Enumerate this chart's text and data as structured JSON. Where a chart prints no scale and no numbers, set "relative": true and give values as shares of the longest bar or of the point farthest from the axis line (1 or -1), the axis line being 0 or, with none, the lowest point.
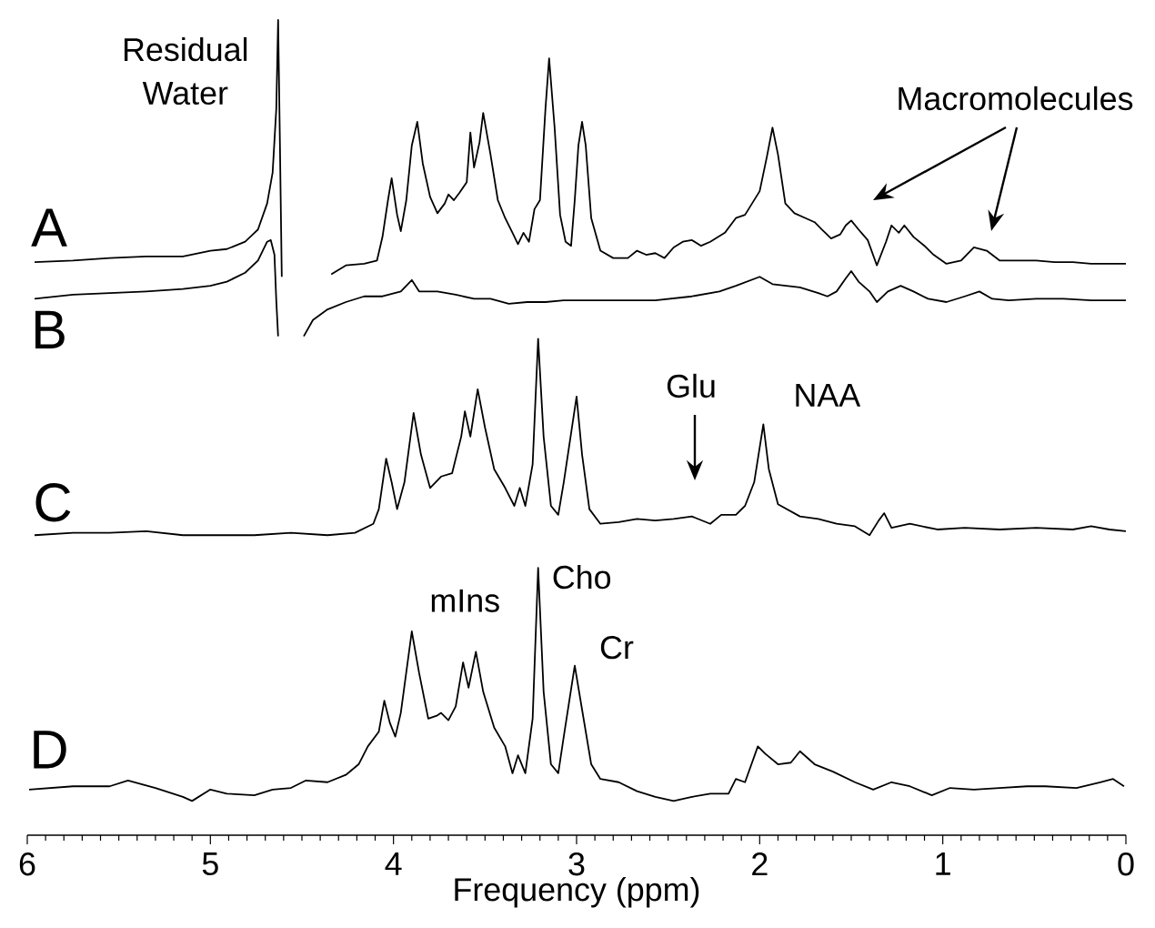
{
  "chart_data": {
    "type": "line",
    "xlabel": "Frequency (ppm)",
    "xlim": [
      6,
      0
    ],
    "xticks": [
      6,
      5,
      4,
      3,
      2,
      1,
      0
    ],
    "relative": true,
    "series": [
      {
        "name": "A",
        "color": "#000000",
        "x": [
          5.96,
          5.75,
          5.55,
          5.35,
          5.15,
          5.0,
          4.91,
          4.81,
          4.74,
          4.69,
          4.66,
          4.64,
          4.63,
          4.62,
          4.61,
          4.5,
          4.34,
          4.26,
          4.16,
          4.09,
          4.06,
          4.03,
          4.01,
          3.98,
          3.96,
          3.93,
          3.9,
          3.87,
          3.84,
          3.8,
          3.76,
          3.72,
          3.7,
          3.67,
          3.64,
          3.6,
          3.58,
          3.56,
          3.53,
          3.51,
          3.47,
          3.43,
          3.39,
          3.35,
          3.32,
          3.29,
          3.26,
          3.23,
          3.2,
          3.17,
          3.15,
          3.12,
          3.09,
          3.06,
          3.03,
          3.01,
          2.99,
          2.97,
          2.95,
          2.92,
          2.87,
          2.8,
          2.72,
          2.67,
          2.62,
          2.57,
          2.52,
          2.47,
          2.42,
          2.37,
          2.32,
          2.27,
          2.19,
          2.13,
          2.08,
          2.0,
          1.96,
          1.93,
          1.9,
          1.86,
          1.81,
          1.75,
          1.7,
          1.66,
          1.61,
          1.56,
          1.53,
          1.5,
          1.46,
          1.41,
          1.36,
          1.31,
          1.28,
          1.24,
          1.21,
          1.16,
          1.1,
          1.05,
          0.98,
          0.9,
          0.83,
          0.76,
          0.69,
          0.59,
          0.49,
          0.39,
          0.29,
          0.19,
          0.09,
          0
        ],
        "values": [
          0.703,
          0.705,
          0.708,
          0.71,
          0.71,
          0.717,
          0.719,
          0.728,
          0.743,
          0.775,
          0.813,
          0.891,
          1.0,
          0.846,
          0.685,
          null,
          0.688,
          0.699,
          0.701,
          0.705,
          0.734,
          0.779,
          0.806,
          0.761,
          0.741,
          0.779,
          0.846,
          0.875,
          0.824,
          0.783,
          0.763,
          0.775,
          0.786,
          0.779,
          0.788,
          0.801,
          0.862,
          0.819,
          0.85,
          0.886,
          0.835,
          0.779,
          0.757,
          0.739,
          0.725,
          0.739,
          0.728,
          0.768,
          0.779,
          0.891,
          0.953,
          0.868,
          0.761,
          0.728,
          0.723,
          0.779,
          0.846,
          0.875,
          0.846,
          0.757,
          0.717,
          0.708,
          0.708,
          0.717,
          0.712,
          0.714,
          0.708,
          0.721,
          0.728,
          0.73,
          0.723,
          0.728,
          0.739,
          0.757,
          0.761,
          0.79,
          0.833,
          0.868,
          0.835,
          0.775,
          0.763,
          0.757,
          0.752,
          0.743,
          0.732,
          0.737,
          0.748,
          0.754,
          0.743,
          0.73,
          0.699,
          0.728,
          0.748,
          0.739,
          0.748,
          0.734,
          0.723,
          0.712,
          0.701,
          0.705,
          0.721,
          0.717,
          0.705,
          0.705,
          0.705,
          0.703,
          0.703,
          0.701,
          0.701,
          0.701
        ]
      },
      {
        "name": "B",
        "color": "#000000",
        "x": [
          5.96,
          5.75,
          5.55,
          5.35,
          5.15,
          5.0,
          4.91,
          4.81,
          4.74,
          4.69,
          4.67,
          4.65,
          4.64,
          4.63,
          4.56,
          4.49,
          4.44,
          4.36,
          4.26,
          4.16,
          4.06,
          3.96,
          3.9,
          3.86,
          3.76,
          3.66,
          3.56,
          3.47,
          3.37,
          3.27,
          3.17,
          3.07,
          2.97,
          2.77,
          2.57,
          2.37,
          2.22,
          2.13,
          2.0,
          1.93,
          1.78,
          1.68,
          1.63,
          1.58,
          1.53,
          1.5,
          1.46,
          1.4,
          1.36,
          1.3,
          1.23,
          1.16,
          1.08,
          0.98,
          0.88,
          0.8,
          0.73,
          0.64,
          0.49,
          0.34,
          0.19,
          0
        ],
        "values": [
          0.658,
          0.663,
          0.665,
          0.667,
          0.67,
          0.674,
          0.679,
          0.69,
          0.705,
          0.728,
          0.73,
          0.712,
          0.656,
          0.612,
          null,
          0.612,
          0.632,
          0.645,
          0.654,
          0.661,
          0.661,
          0.667,
          0.681,
          0.667,
          0.667,
          0.663,
          0.658,
          0.658,
          0.652,
          0.654,
          0.654,
          0.656,
          0.656,
          0.656,
          0.656,
          0.661,
          0.667,
          0.674,
          0.685,
          0.676,
          0.672,
          0.665,
          0.661,
          0.667,
          0.683,
          0.692,
          0.679,
          0.667,
          0.654,
          0.667,
          0.674,
          0.667,
          0.658,
          0.654,
          0.661,
          0.667,
          0.658,
          0.656,
          0.658,
          0.658,
          0.656,
          0.656
        ]
      },
      {
        "name": "C",
        "color": "#000000",
        "x": [
          5.96,
          5.75,
          5.55,
          5.35,
          5.15,
          4.96,
          4.76,
          4.56,
          4.36,
          4.21,
          4.11,
          4.08,
          4.04,
          4.01,
          3.98,
          3.94,
          3.89,
          3.85,
          3.8,
          3.74,
          3.68,
          3.63,
          3.61,
          3.58,
          3.54,
          3.5,
          3.45,
          3.39,
          3.34,
          3.31,
          3.28,
          3.24,
          3.21,
          3.18,
          3.14,
          3.1,
          3.07,
          3.0,
          2.97,
          2.93,
          2.87,
          2.77,
          2.67,
          2.57,
          2.47,
          2.37,
          2.27,
          2.21,
          2.13,
          2.08,
          2.03,
          1.98,
          1.95,
          1.9,
          1.78,
          1.68,
          1.58,
          1.48,
          1.4,
          1.35,
          1.32,
          1.28,
          1.18,
          1.03,
          0.88,
          0.69,
          0.49,
          0.29,
          0.19,
          0.09,
          0
        ],
        "values": [
          0.368,
          0.371,
          0.371,
          0.373,
          0.368,
          0.368,
          0.368,
          0.371,
          0.368,
          0.371,
          0.382,
          0.4,
          0.462,
          0.433,
          0.4,
          0.433,
          0.518,
          0.467,
          0.426,
          0.44,
          0.444,
          0.489,
          0.52,
          0.489,
          0.547,
          0.5,
          0.449,
          0.426,
          0.404,
          0.426,
          0.404,
          0.455,
          0.609,
          0.489,
          0.404,
          0.393,
          0.433,
          0.538,
          0.467,
          0.4,
          0.382,
          0.384,
          0.388,
          0.386,
          0.388,
          0.391,
          0.382,
          0.393,
          0.393,
          0.404,
          0.433,
          0.504,
          0.449,
          0.406,
          0.391,
          0.388,
          0.382,
          0.379,
          0.368,
          0.386,
          0.395,
          0.377,
          0.382,
          0.375,
          0.377,
          0.375,
          0.377,
          0.375,
          0.379,
          0.375,
          0.373
        ]
      },
      {
        "name": "D",
        "color": "#000000",
        "x": [
          5.99,
          5.75,
          5.55,
          5.45,
          5.3,
          5.15,
          5.1,
          5.0,
          4.91,
          4.76,
          4.66,
          4.56,
          4.48,
          4.36,
          4.26,
          4.19,
          4.14,
          4.08,
          4.05,
          4.02,
          3.99,
          3.96,
          3.9,
          3.86,
          3.81,
          3.76,
          3.74,
          3.7,
          3.66,
          3.62,
          3.59,
          3.55,
          3.51,
          3.45,
          3.39,
          3.35,
          3.32,
          3.28,
          3.24,
          3.21,
          3.18,
          3.14,
          3.1,
          3.07,
          3.01,
          2.97,
          2.92,
          2.87,
          2.77,
          2.67,
          2.57,
          2.47,
          2.37,
          2.27,
          2.17,
          2.13,
          2.08,
          2.01,
          1.97,
          1.9,
          1.83,
          1.78,
          1.7,
          1.6,
          1.48,
          1.38,
          1.28,
          1.18,
          1.06,
          0.96,
          0.83,
          0.69,
          0.54,
          0.44,
          0.27,
          0.14,
          0.07,
          0.01
        ],
        "values": [
          0.056,
          0.06,
          0.06,
          0.067,
          0.058,
          0.047,
          0.042,
          0.056,
          0.051,
          0.049,
          0.056,
          0.058,
          0.067,
          0.065,
          0.074,
          0.087,
          0.109,
          0.127,
          0.165,
          0.138,
          0.121,
          0.15,
          0.25,
          0.199,
          0.143,
          0.147,
          0.15,
          0.141,
          0.158,
          0.212,
          0.181,
          0.225,
          0.176,
          0.132,
          0.109,
          0.076,
          0.098,
          0.076,
          0.143,
          0.328,
          0.176,
          0.087,
          0.076,
          0.121,
          0.208,
          0.154,
          0.087,
          0.069,
          0.065,
          0.054,
          0.047,
          0.042,
          0.047,
          0.051,
          0.051,
          0.069,
          0.065,
          0.109,
          0.1,
          0.087,
          0.089,
          0.103,
          0.087,
          0.078,
          0.065,
          0.056,
          0.065,
          0.06,
          0.049,
          0.058,
          0.056,
          0.058,
          0.06,
          0.06,
          0.058,
          0.065,
          0.069,
          0.06
        ]
      }
    ],
    "annotations": [
      {
        "text": "Residual Water",
        "x": 4.63,
        "y": 1.0
      },
      "Macromolecules",
      "Glu",
      {
        "text": "NAA",
        "x": 1.98,
        "y": 0.504
      },
      {
        "text": "mIns",
        "x": 3.55,
        "y": 0.225
      },
      {
        "text": "Cho",
        "x": 3.21,
        "y": 0.328
      },
      {
        "text": "Cr",
        "x": 3.01,
        "y": 0.208
      }
    ]
  }
}
